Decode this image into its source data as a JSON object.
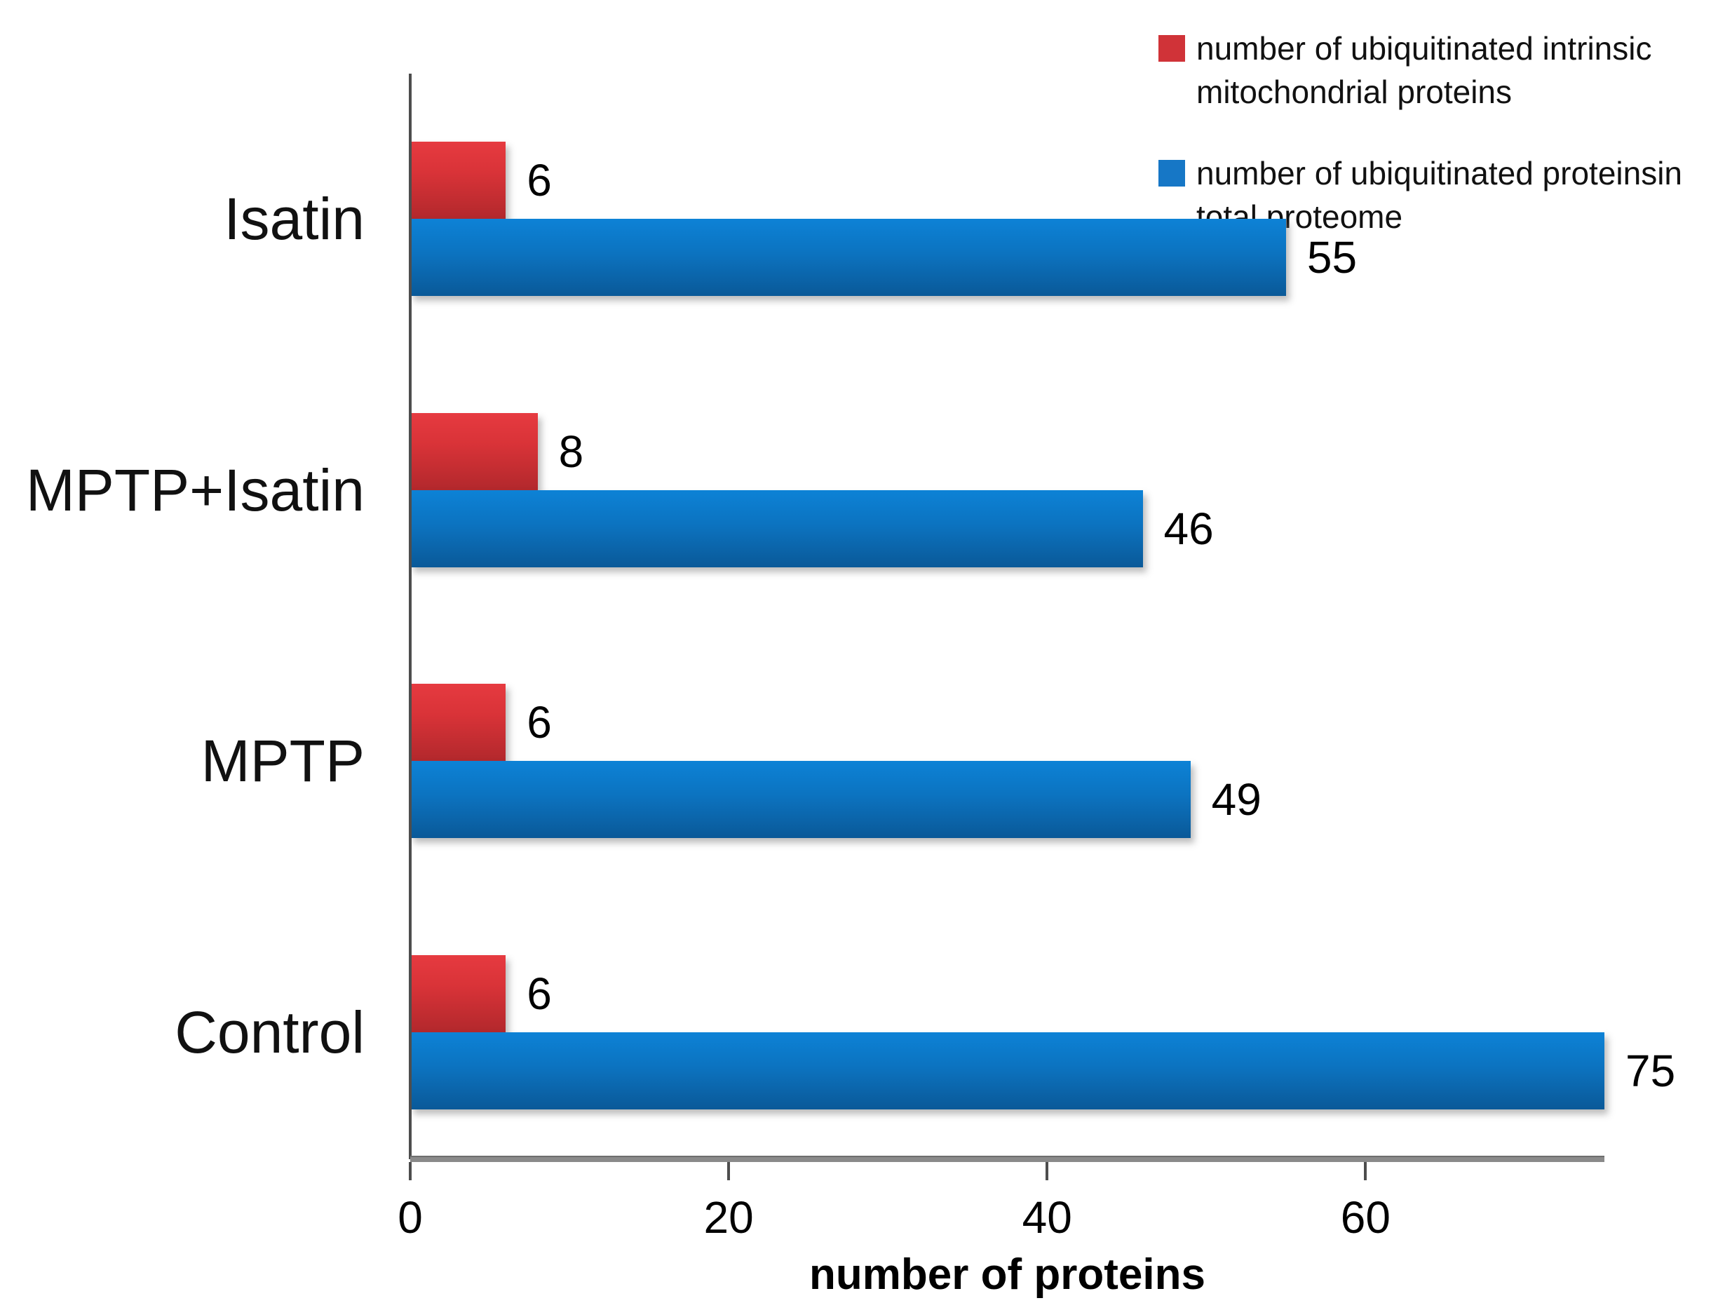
{
  "chart_data": {
    "type": "bar",
    "orientation": "horizontal",
    "title": "",
    "xlabel": "number of proteins",
    "ylabel": "",
    "categories": [
      "Isatin",
      "MPTP+Isatin",
      "MPTP",
      "Control"
    ],
    "series": [
      {
        "name": "number of ubiquitinated intrinsic mitochondrial proteins",
        "color": "#d03338",
        "values": [
          6,
          8,
          6,
          6
        ]
      },
      {
        "name": "number of ubiquitinated proteinsin total proteome",
        "color": "#1677c6",
        "values": [
          55,
          46,
          49,
          75
        ]
      }
    ],
    "xlim": [
      0,
      75
    ],
    "x_ticks": [
      0,
      20,
      40,
      60
    ],
    "grid": false,
    "legend_position": "top-right",
    "data_labels": true,
    "legend_items": [
      {
        "line1": "number of ubiquitinated intrinsic",
        "line2": "mitochondrial proteins",
        "color": "#d03338"
      },
      {
        "line1": "number of ubiquitinated proteinsin",
        "line2": "total proteome",
        "color": "#1677c6"
      }
    ]
  }
}
